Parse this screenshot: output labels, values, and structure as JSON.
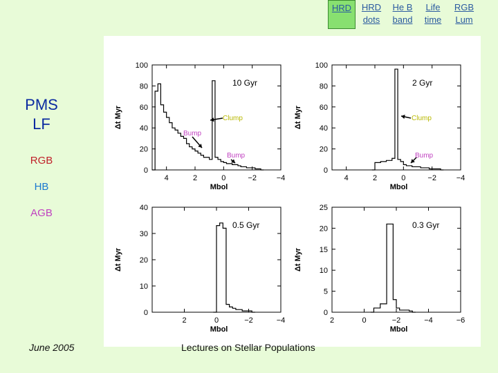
{
  "nav": {
    "hrd": "HRD",
    "hrd_dots": [
      "HRD",
      "dots"
    ],
    "heb_band": [
      "He B",
      "band"
    ],
    "life_time": [
      "Life",
      "time"
    ],
    "rgb_lum": [
      "RGB",
      "Lum"
    ]
  },
  "sidebar": {
    "title": [
      "PMS",
      "LF"
    ],
    "rgb": "RGB",
    "hb": "HB",
    "agb": "AGB"
  },
  "footer": {
    "date": "June 2005",
    "title": "Lectures on Stellar Populations"
  },
  "colors": {
    "background": "#e8fbd8",
    "active_button": "#88e070",
    "link": "#2a5aa0",
    "title": "#0a2aa0",
    "rgb": "#c0202a",
    "hb": "#1a78d0",
    "agb": "#c040c0",
    "clump_label": "#b8b800",
    "bump_label": "#c040c0"
  },
  "chart_data": [
    {
      "type": "histogram",
      "age_label": "10 Gyr",
      "xlabel": "Mbol",
      "ylabel": "Δt Myr",
      "xlim": [
        5,
        -4
      ],
      "ylim": [
        0,
        100
      ],
      "xticks": [
        "4",
        "2",
        "0",
        "−2",
        "−4"
      ],
      "yticks": [
        "0",
        "20",
        "40",
        "60",
        "80",
        "100"
      ],
      "annotations": [
        "Clump",
        "Bump",
        "Bump"
      ],
      "x": [
        4.9,
        4.7,
        4.5,
        4.3,
        4.1,
        3.9,
        3.7,
        3.5,
        3.3,
        3.1,
        2.9,
        2.7,
        2.5,
        2.3,
        2.1,
        1.9,
        1.7,
        1.5,
        1.3,
        1.1,
        0.9,
        0.7,
        0.5,
        0.3,
        0.1,
        -0.1,
        -0.3,
        -0.5,
        -0.7,
        -0.9,
        -1.1,
        -1.3,
        -1.5,
        -1.7,
        -1.9,
        -2.1,
        -2.3,
        -2.5,
        -2.7
      ],
      "y": [
        0,
        75,
        82,
        62,
        55,
        50,
        45,
        40,
        38,
        35,
        32,
        30,
        25,
        22,
        20,
        18,
        16,
        14,
        12,
        12,
        10,
        85,
        12,
        10,
        8,
        7,
        6,
        6,
        5,
        5,
        4,
        3,
        3,
        2,
        2,
        2,
        1,
        1,
        0
      ]
    },
    {
      "type": "histogram",
      "age_label": "2 Gyr",
      "xlabel": "Mbol",
      "ylabel": "Δt Myr",
      "xlim": [
        5,
        -4
      ],
      "ylim": [
        0,
        100
      ],
      "xticks": [
        "4",
        "2",
        "0",
        "−2",
        "−4"
      ],
      "yticks": [
        "0",
        "20",
        "40",
        "60",
        "80",
        "100"
      ],
      "annotations": [
        "Clump",
        "Bump"
      ],
      "x": [
        2.1,
        1.9,
        1.7,
        1.5,
        1.3,
        1.1,
        0.9,
        0.7,
        0.5,
        0.3,
        0.1,
        -0.1,
        -0.3,
        -0.5,
        -0.7,
        -0.9,
        -1.1,
        -1.3,
        -1.5,
        -1.7,
        -1.9,
        -2.1,
        -2.3,
        -2.5,
        -2.7
      ],
      "y": [
        0,
        7,
        7,
        8,
        8,
        9,
        9,
        11,
        96,
        10,
        8,
        5,
        4,
        4,
        3,
        3,
        3,
        2,
        2,
        2,
        1,
        1,
        1,
        1,
        0
      ]
    },
    {
      "type": "histogram",
      "age_label": "0.5 Gyr",
      "xlabel": "Mbol",
      "ylabel": "Δt Myr",
      "xlim": [
        4,
        -4
      ],
      "ylim": [
        0,
        40
      ],
      "xticks": [
        "2",
        "0",
        "−2",
        "−4"
      ],
      "yticks": [
        "0",
        "10",
        "20",
        "30",
        "40"
      ],
      "x": [
        0.1,
        -0.1,
        -0.3,
        -0.5,
        -0.7,
        -0.9,
        -1.1,
        -1.3,
        -1.5,
        -1.7,
        -1.9,
        -2.1,
        -2.3
      ],
      "y": [
        0,
        33,
        34,
        32,
        3,
        2,
        1.5,
        1,
        1,
        0.5,
        0.5,
        0.5,
        0
      ]
    },
    {
      "type": "histogram",
      "age_label": "0.3 Gyr",
      "xlabel": "Mbol",
      "ylabel": "Δt Myr",
      "xlim": [
        2,
        -6
      ],
      "ylim": [
        0,
        25
      ],
      "xticks": [
        "2",
        "0",
        "−2",
        "−4",
        "−6"
      ],
      "yticks": [
        "0",
        "5",
        "10",
        "15",
        "20",
        "25"
      ],
      "x": [
        -0.5,
        -0.7,
        -0.9,
        -1.1,
        -1.3,
        -1.5,
        -1.7,
        -1.9,
        -2.1,
        -2.3,
        -2.5,
        -2.7,
        -2.9,
        -3.1
      ],
      "y": [
        0,
        1,
        1,
        2,
        2,
        21,
        21,
        3,
        1,
        0.5,
        0.5,
        0.5,
        0.3,
        0
      ]
    }
  ]
}
